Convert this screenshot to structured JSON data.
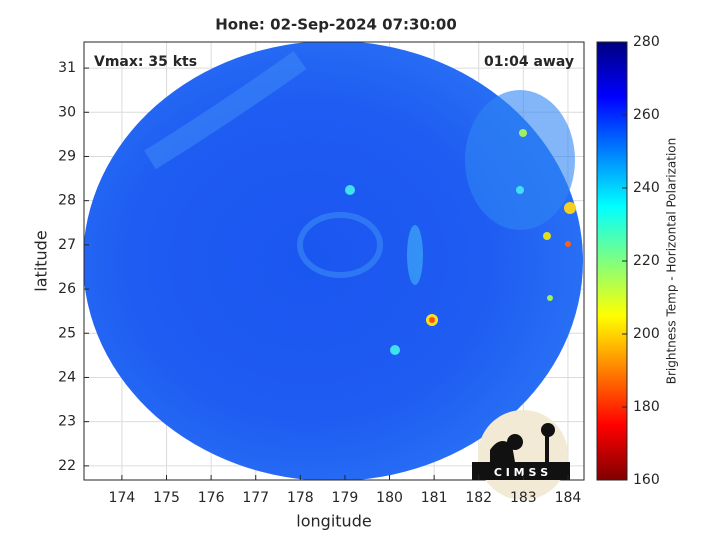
{
  "map": {
    "title": "Hone: 02-Sep-2024 07:30:00",
    "annotation_left": "Vmax: 35 kts",
    "annotation_right": "01:04 away",
    "xlabel": "longitude",
    "ylabel": "latitude",
    "xlim": [
      173.15,
      184.36
    ],
    "ylim": [
      21.68,
      31.59
    ],
    "xticks": [
      174,
      175,
      176,
      177,
      178,
      179,
      180,
      181,
      182,
      183,
      184
    ],
    "yticks": [
      22,
      23,
      24,
      25,
      26,
      27,
      28,
      29,
      30,
      31
    ],
    "grid": true
  },
  "colorbar": {
    "label": "Brightness Temp - Horizontal Polarization",
    "lim": [
      160,
      280
    ],
    "ticks": [
      160,
      180,
      200,
      220,
      240,
      260,
      280
    ]
  },
  "logo": "C I M S S"
}
